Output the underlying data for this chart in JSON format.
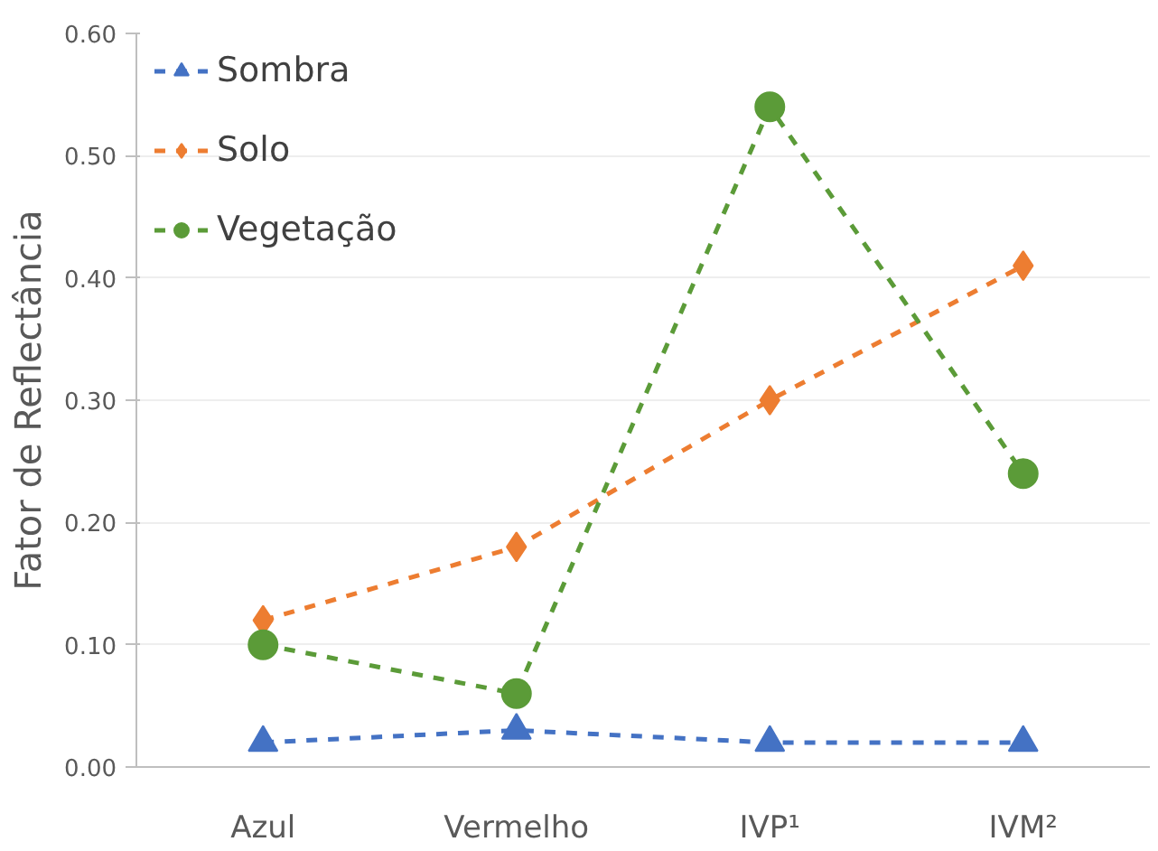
{
  "chart_data": {
    "type": "line",
    "ylabel": "Fator de Reflectância",
    "categories": [
      "Azul",
      "Vermelho",
      "IVP¹",
      "IVM²"
    ],
    "series": [
      {
        "name": "Sombra",
        "color": "#4472c4",
        "marker": "triangle",
        "values": [
          0.02,
          0.03,
          0.02,
          0.02
        ]
      },
      {
        "name": "Solo",
        "color": "#ed7d31",
        "marker": "diamond",
        "values": [
          0.12,
          0.18,
          0.3,
          0.41
        ]
      },
      {
        "name": "Vegetação",
        "color": "#5b9b38",
        "marker": "circle",
        "values": [
          0.1,
          0.06,
          0.54,
          0.24
        ]
      }
    ],
    "ylim": [
      0,
      0.6
    ],
    "yticks": [
      {
        "value": 0,
        "label": "0.00"
      },
      {
        "value": 0.1,
        "label": "0.10"
      },
      {
        "value": 0.2,
        "label": "0.20"
      },
      {
        "value": 0.3,
        "label": "0.30"
      },
      {
        "value": 0.4,
        "label": "0.40"
      },
      {
        "value": 0.5,
        "label": "0.50"
      },
      {
        "value": 0.6,
        "label": "0.60"
      }
    ],
    "grid": "y",
    "legend": "top left",
    "line_style": "dashed"
  }
}
